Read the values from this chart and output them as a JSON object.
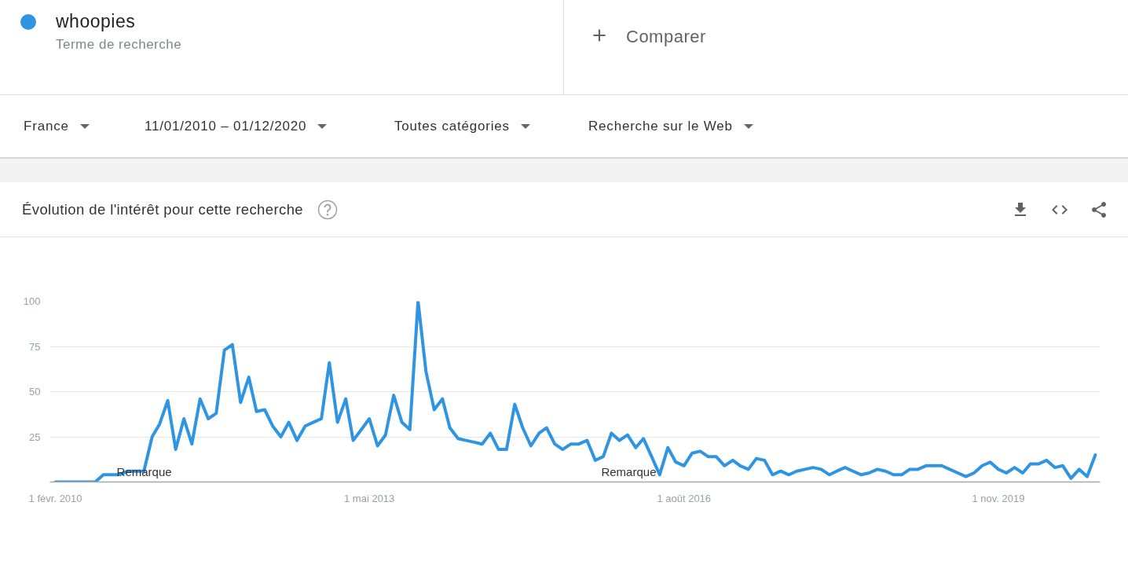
{
  "chart_data": {
    "type": "line",
    "title": "Évolution de l'intérêt pour cette recherche",
    "x": [
      "2010-02",
      "2010-03",
      "2010-04",
      "2010-05",
      "2010-06",
      "2010-07",
      "2010-08",
      "2010-09",
      "2010-10",
      "2010-11",
      "2010-12",
      "2011-01",
      "2011-02",
      "2011-03",
      "2011-04",
      "2011-05",
      "2011-06",
      "2011-07",
      "2011-08",
      "2011-09",
      "2011-10",
      "2011-11",
      "2011-12",
      "2012-01",
      "2012-02",
      "2012-03",
      "2012-04",
      "2012-05",
      "2012-06",
      "2012-07",
      "2012-08",
      "2012-09",
      "2012-10",
      "2012-11",
      "2012-12",
      "2013-01",
      "2013-02",
      "2013-03",
      "2013-04",
      "2013-05",
      "2013-06",
      "2013-07",
      "2013-08",
      "2013-09",
      "2013-10",
      "2013-11",
      "2013-12",
      "2014-01",
      "2014-02",
      "2014-03",
      "2014-04",
      "2014-05",
      "2014-06",
      "2014-07",
      "2014-08",
      "2014-09",
      "2014-10",
      "2014-11",
      "2014-12",
      "2015-01",
      "2015-02",
      "2015-03",
      "2015-04",
      "2015-05",
      "2015-06",
      "2015-07",
      "2015-08",
      "2015-09",
      "2015-10",
      "2015-11",
      "2015-12",
      "2016-01",
      "2016-02",
      "2016-03",
      "2016-04",
      "2016-05",
      "2016-06",
      "2016-07",
      "2016-08",
      "2016-09",
      "2016-10",
      "2016-11",
      "2016-12",
      "2017-01",
      "2017-02",
      "2017-03",
      "2017-04",
      "2017-05",
      "2017-06",
      "2017-07",
      "2017-08",
      "2017-09",
      "2017-10",
      "2017-11",
      "2017-12",
      "2018-01",
      "2018-02",
      "2018-03",
      "2018-04",
      "2018-05",
      "2018-06",
      "2018-07",
      "2018-08",
      "2018-09",
      "2018-10",
      "2018-11",
      "2018-12",
      "2019-01",
      "2019-02",
      "2019-03",
      "2019-04",
      "2019-05",
      "2019-06",
      "2019-07",
      "2019-08",
      "2019-09",
      "2019-10",
      "2019-11",
      "2019-12",
      "2020-01",
      "2020-02",
      "2020-03",
      "2020-04",
      "2020-05",
      "2020-06",
      "2020-07",
      "2020-08",
      "2020-09",
      "2020-10",
      "2020-11"
    ],
    "xlim": [
      "2010-01-11",
      "2020-11-19"
    ],
    "xticks": [
      {
        "value": "2010-02-01",
        "label": "1 févr. 2010"
      },
      {
        "value": "2013-05-01",
        "label": "1 mai 2013"
      },
      {
        "value": "2016-08-01",
        "label": "1 août 2016"
      },
      {
        "value": "2019-11-01",
        "label": "1 nov. 2019"
      }
    ],
    "ylim": [
      0,
      100
    ],
    "yticks": [
      25,
      50,
      75,
      100
    ],
    "grid": "y",
    "legend": "top left",
    "series": [
      {
        "name": "whoopies",
        "color": "#2f95e3",
        "values": [
          0,
          0,
          0,
          0,
          0,
          0,
          4,
          4,
          4,
          6,
          6,
          6,
          25,
          32,
          45,
          18,
          35,
          21,
          46,
          35,
          38,
          73,
          76,
          44,
          58,
          39,
          40,
          31,
          25,
          33,
          23,
          31,
          33,
          35,
          66,
          33,
          46,
          23,
          29,
          35,
          20,
          26,
          48,
          33,
          29,
          100,
          61,
          40,
          46,
          30,
          24,
          23,
          22,
          21,
          27,
          18,
          18,
          43,
          30,
          20,
          27,
          30,
          21,
          18,
          21,
          21,
          23,
          12,
          14,
          27,
          23,
          26,
          19,
          24,
          14,
          4,
          19,
          11,
          9,
          16,
          17,
          14,
          14,
          9,
          12,
          9,
          7,
          13,
          12,
          4,
          6,
          4,
          6,
          7,
          8,
          7,
          4,
          6,
          8,
          6,
          4,
          5,
          7,
          6,
          4,
          4,
          7,
          7,
          9,
          9,
          9,
          7,
          5,
          3,
          5,
          9,
          11,
          7,
          5,
          8,
          5,
          10,
          10,
          12,
          8,
          9,
          2,
          7,
          3,
          15
        ]
      }
    ],
    "annotations": [
      "Terme de recherche",
      "Comparer",
      "France",
      "11/01/2010 – 01/12/2020",
      "Toutes catégories",
      "Recherche sur le Web",
      "Remarque",
      "Remarque"
    ]
  }
}
